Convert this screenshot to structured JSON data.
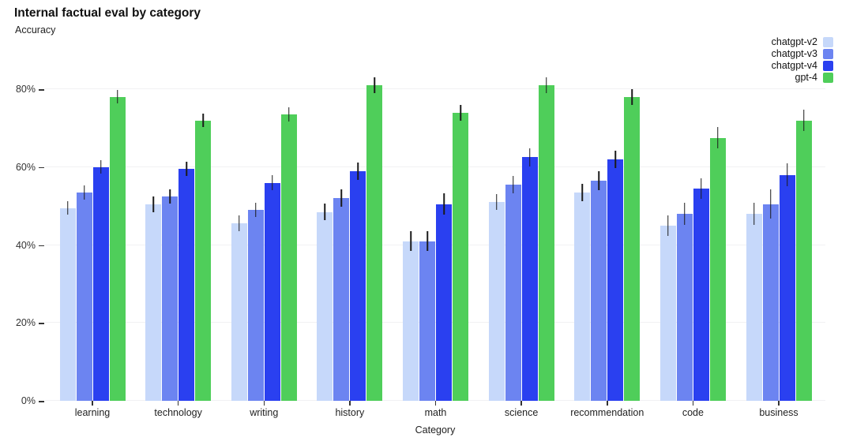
{
  "chart_data": {
    "type": "bar",
    "title": "Internal factual eval by category",
    "ylabel": "Accuracy",
    "xlabel": "Category",
    "categories": [
      "learning",
      "technology",
      "writing",
      "history",
      "math",
      "science",
      "recommendation",
      "code",
      "business"
    ],
    "series": [
      {
        "name": "chatgpt-v2",
        "color": "#c6d8fa",
        "values": [
          49.5,
          50.5,
          45.5,
          48.5,
          41,
          51,
          53.5,
          45,
          48
        ],
        "errors": [
          1.7,
          2.0,
          2.0,
          2.2,
          2.5,
          2.0,
          2.2,
          2.6,
          2.9
        ]
      },
      {
        "name": "chatgpt-v3",
        "color": "#6c84f1",
        "values": [
          53.5,
          52.5,
          49,
          52,
          41,
          55.5,
          56.5,
          48,
          50.5
        ],
        "errors": [
          1.8,
          1.8,
          1.8,
          2.2,
          2.5,
          2.3,
          2.5,
          2.8,
          3.7
        ]
      },
      {
        "name": "chatgpt-v4",
        "color": "#2a40f0",
        "values": [
          60,
          59.5,
          56,
          59,
          50.5,
          62.5,
          62,
          54.5,
          58
        ],
        "errors": [
          1.7,
          1.8,
          2.0,
          2.2,
          2.7,
          2.3,
          2.3,
          2.6,
          3.0
        ]
      },
      {
        "name": "gpt-4",
        "color": "#4fce5a",
        "values": [
          78,
          72,
          73.5,
          81,
          74,
          81,
          78,
          67.5,
          72
        ],
        "errors": [
          1.7,
          1.7,
          1.8,
          2.0,
          2.0,
          2.0,
          2.1,
          2.7,
          2.8
        ]
      }
    ],
    "yticks": [
      {
        "value": 0,
        "label": "0%"
      },
      {
        "value": 20,
        "label": "20%"
      },
      {
        "value": 40,
        "label": "40%"
      },
      {
        "value": 60,
        "label": "60%"
      },
      {
        "value": 80,
        "label": "80%"
      }
    ],
    "ylim": [
      0,
      84.7
    ],
    "grid": true,
    "legend_position": "top-right",
    "error_bar_color": "#1a1a1a"
  }
}
